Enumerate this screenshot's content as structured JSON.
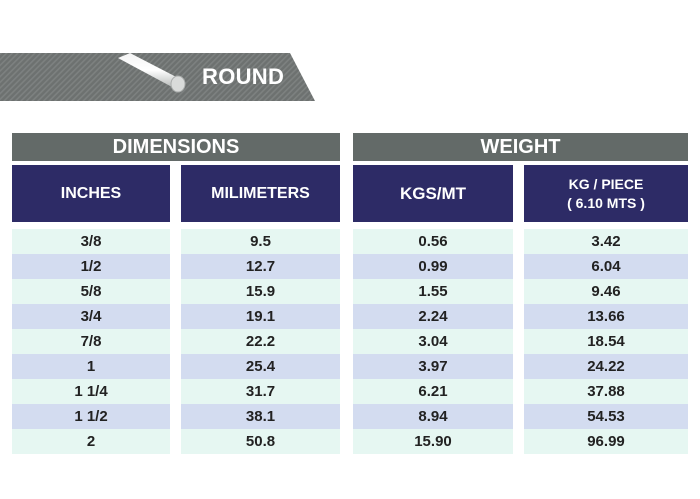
{
  "banner": {
    "title": "ROUND"
  },
  "groups": {
    "dimensions": "DIMENSIONS",
    "weight": "WEIGHT"
  },
  "columns": {
    "inches": "INCHES",
    "millimeters": "MILIMETERS",
    "kgs_mt": "KGS/MT",
    "kg_piece_line1": "KG / PIECE",
    "kg_piece_line2": "( 6.10 MTS )"
  },
  "rows": [
    {
      "inches": "3/8",
      "mm": "9.5",
      "kgs_mt": "0.56",
      "kg_piece": "3.42"
    },
    {
      "inches": "1/2",
      "mm": "12.7",
      "kgs_mt": "0.99",
      "kg_piece": "6.04"
    },
    {
      "inches": "5/8",
      "mm": "15.9",
      "kgs_mt": "1.55",
      "kg_piece": "9.46"
    },
    {
      "inches": "3/4",
      "mm": "19.1",
      "kgs_mt": "2.24",
      "kg_piece": "13.66"
    },
    {
      "inches": "7/8",
      "mm": "22.2",
      "kgs_mt": "3.04",
      "kg_piece": "18.54"
    },
    {
      "inches": "1",
      "mm": "25.4",
      "kgs_mt": "3.97",
      "kg_piece": "24.22"
    },
    {
      "inches": "1 1/4",
      "mm": "31.7",
      "kgs_mt": "6.21",
      "kg_piece": "37.88"
    },
    {
      "inches": "1 1/2",
      "mm": "38.1",
      "kgs_mt": "8.94",
      "kg_piece": "54.53"
    },
    {
      "inches": "2",
      "mm": "50.8",
      "kgs_mt": "15.90",
      "kg_piece": "96.99"
    }
  ],
  "colors": {
    "banner": "#6d7170",
    "group_header": "#636a68",
    "column_header": "#2d2b66",
    "row_light": "#e6f7f2",
    "row_blue": "#d3dcf0"
  }
}
